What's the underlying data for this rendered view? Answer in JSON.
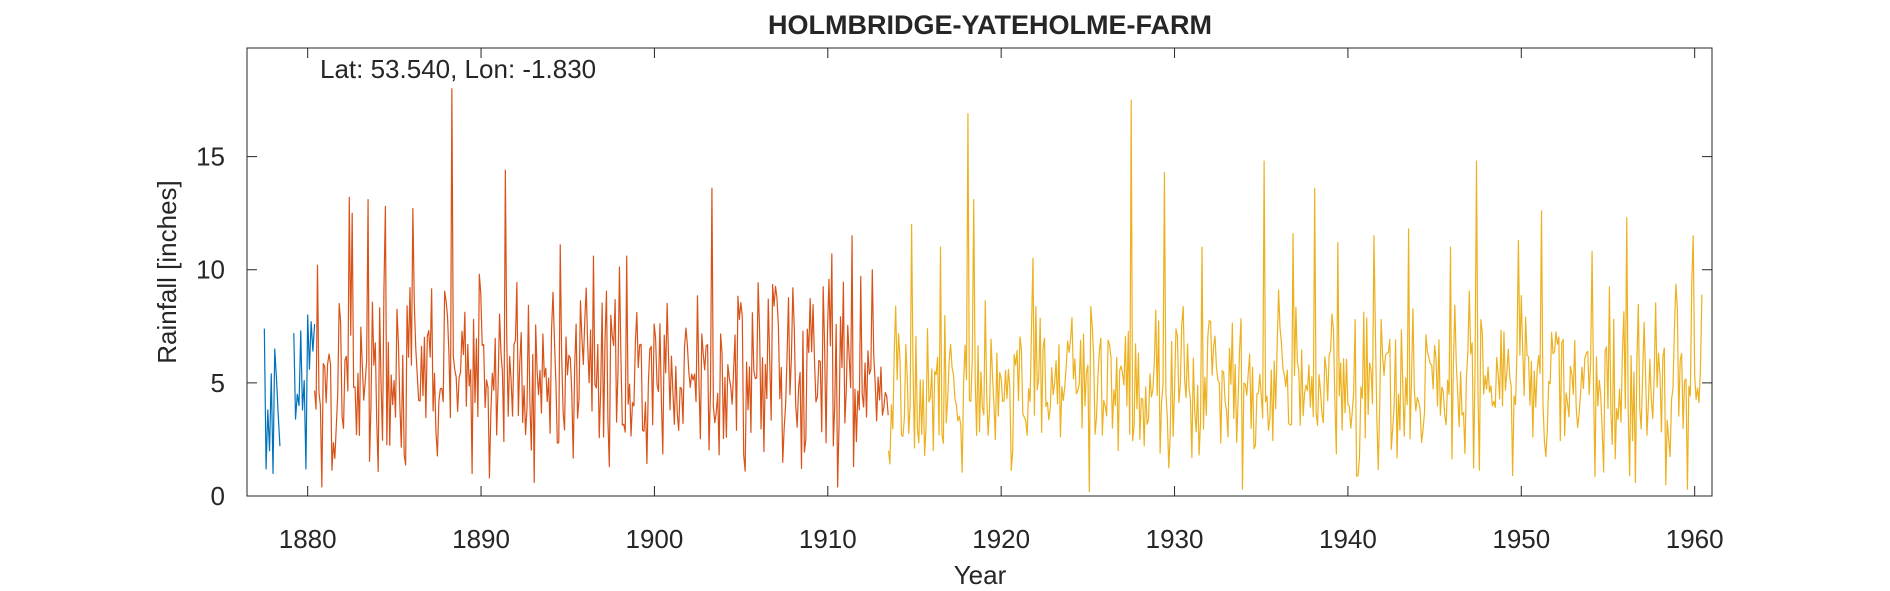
{
  "chart_data": {
    "type": "line",
    "title": "HOLMBRIDGE-YATEHOLME-FARM",
    "annotation": "Lat: 53.540, Lon: -1.830",
    "xlabel": "Year",
    "ylabel": "Rainfall [inches]",
    "xlim": [
      1876.5,
      1961.0
    ],
    "ylim": [
      0,
      19.8
    ],
    "xticks": [
      1880,
      1890,
      1900,
      1910,
      1920,
      1930,
      1940,
      1950,
      1960
    ],
    "yticks": [
      0,
      5,
      10,
      15
    ],
    "grid": false,
    "legend": "none",
    "series": [
      {
        "color": "#0072BD",
        "segments": [
          {
            "x": [
              1877.5,
              1877.6,
              1877.7,
              1877.8,
              1877.9,
              1878.0,
              1878.1,
              1878.2,
              1878.3,
              1878.4
            ],
            "y": [
              7.4,
              1.2,
              3.8,
              2.0,
              5.4,
              1.0,
              6.5,
              5.2,
              3.6,
              2.2
            ]
          },
          {
            "x": [
              1879.2,
              1879.3,
              1879.4,
              1879.5,
              1879.6,
              1879.7,
              1879.8,
              1879.9,
              1880.0,
              1880.1,
              1880.2,
              1880.3,
              1880.4
            ],
            "y": [
              7.2,
              3.4,
              4.5,
              4.0,
              7.3,
              3.8,
              5.1,
              1.2,
              8.0,
              5.6,
              7.7,
              6.4,
              7.6
            ]
          }
        ]
      },
      {
        "color": "#D95319",
        "x_start": 1880.4,
        "x_end": 1913.5,
        "baseline": 5.3,
        "amplitude": 2.3,
        "seed": 17,
        "peaks": [
          [
            1880.6,
            10.2
          ],
          [
            1880.8,
            0.4
          ],
          [
            1882.4,
            13.2
          ],
          [
            1882.6,
            12.5
          ],
          [
            1883.5,
            13.1
          ],
          [
            1884.5,
            12.8
          ],
          [
            1886.1,
            12.7
          ],
          [
            1888.3,
            18.0
          ],
          [
            1891.4,
            14.4
          ],
          [
            1889.9,
            9.8
          ],
          [
            1894.6,
            11.1
          ],
          [
            1896.5,
            10.6
          ],
          [
            1898.4,
            10.6
          ],
          [
            1903.3,
            13.6
          ],
          [
            1904.9,
            7.8
          ],
          [
            1906.6,
            8.7
          ],
          [
            1908.0,
            9.2
          ],
          [
            1910.2,
            10.7
          ],
          [
            1910.6,
            0.4
          ],
          [
            1911.4,
            11.5
          ],
          [
            1911.9,
            9.7
          ],
          [
            1912.6,
            10.0
          ],
          [
            1905.2,
            1.1
          ],
          [
            1893.1,
            0.6
          ],
          [
            1890.5,
            0.8
          ]
        ]
      },
      {
        "color": "#EDB120",
        "x_start": 1913.5,
        "x_end": 1960.4,
        "baseline": 4.9,
        "amplitude": 2.2,
        "seed": 91,
        "peaks": [
          [
            1914.8,
            12.0
          ],
          [
            1916.5,
            11.0
          ],
          [
            1918.1,
            16.9
          ],
          [
            1918.4,
            13.1
          ],
          [
            1921.8,
            10.5
          ],
          [
            1925.1,
            0.2
          ],
          [
            1927.5,
            17.5
          ],
          [
            1929.4,
            14.3
          ],
          [
            1931.6,
            11.0
          ],
          [
            1933.9,
            0.3
          ],
          [
            1935.2,
            14.8
          ],
          [
            1936.8,
            11.6
          ],
          [
            1938.1,
            13.6
          ],
          [
            1939.4,
            11.2
          ],
          [
            1941.5,
            11.5
          ],
          [
            1943.5,
            11.8
          ],
          [
            1945.9,
            11.0
          ],
          [
            1947.4,
            14.8
          ],
          [
            1949.8,
            11.3
          ],
          [
            1951.2,
            12.6
          ],
          [
            1954.1,
            10.8
          ],
          [
            1956.1,
            12.3
          ],
          [
            1956.6,
            0.6
          ],
          [
            1958.3,
            0.5
          ],
          [
            1959.6,
            0.3
          ],
          [
            1959.9,
            11.5
          ],
          [
            1960.4,
            8.9
          ]
        ]
      }
    ]
  }
}
